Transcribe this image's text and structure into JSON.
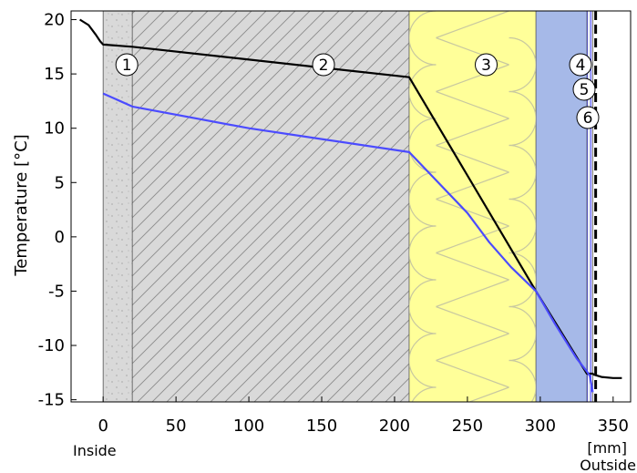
{
  "chart_data": {
    "type": "line",
    "title": "",
    "ylabel": "Temperature  [°C]",
    "xlabel": "",
    "x_unit_label": "[mm]",
    "inside_label": "Inside",
    "outside_label": "Outside",
    "xlim": [
      -22,
      362
    ],
    "ylim": [
      -15.2,
      20.8
    ],
    "x_ticks": [
      0,
      50,
      100,
      150,
      200,
      250,
      300,
      350
    ],
    "y_ticks": [
      20,
      15,
      10,
      5,
      0,
      -5,
      -10,
      -15
    ],
    "grid": false,
    "layers": [
      {
        "label": "1",
        "x_start": 0,
        "x_end": 20,
        "pattern": "dotted",
        "color": "#d9d9d9"
      },
      {
        "label": "2",
        "x_start": 20,
        "x_end": 210,
        "pattern": "hatched",
        "color": "#d9d9d9"
      },
      {
        "label": "3",
        "x_start": 210,
        "x_end": 297,
        "pattern": "insulation",
        "color": "#ffff99"
      },
      {
        "label": "4",
        "x_start": 297,
        "x_end": 332,
        "pattern": "solid",
        "color": "#a6b9e8"
      },
      {
        "label": "5",
        "x_start": 332,
        "x_end": 336,
        "pattern": "membrane",
        "color": "#ffffff"
      },
      {
        "label": "6",
        "x_start": 336,
        "x_end": 340,
        "pattern": "dashed-black",
        "color": "#000000"
      }
    ],
    "series": [
      {
        "color": "#000000",
        "points": [
          [
            -16,
            20.0
          ],
          [
            -10,
            19.5
          ],
          [
            -5,
            18.6
          ],
          [
            -2,
            18.0
          ],
          [
            0,
            17.7
          ],
          [
            20,
            17.5
          ],
          [
            210,
            14.7
          ],
          [
            297,
            -5.0
          ],
          [
            332,
            -12.6
          ],
          [
            336,
            -12.6
          ],
          [
            337,
            -12.7
          ],
          [
            342,
            -12.9
          ],
          [
            350,
            -13.0
          ],
          [
            356,
            -13.0
          ]
        ]
      },
      {
        "color": "#4b4bff",
        "points": [
          [
            0,
            13.2
          ],
          [
            20,
            12.0
          ],
          [
            100,
            10.0
          ],
          [
            150,
            9.0
          ],
          [
            210,
            7.8
          ],
          [
            230,
            5.0
          ],
          [
            250,
            2.2
          ],
          [
            265,
            -0.5
          ],
          [
            280,
            -2.8
          ],
          [
            297,
            -5.0
          ],
          [
            310,
            -8.0
          ],
          [
            325,
            -11.2
          ],
          [
            332,
            -12.4
          ],
          [
            334,
            -12.8
          ],
          [
            335,
            -13.5
          ],
          [
            336,
            -14.3
          ]
        ]
      }
    ]
  }
}
